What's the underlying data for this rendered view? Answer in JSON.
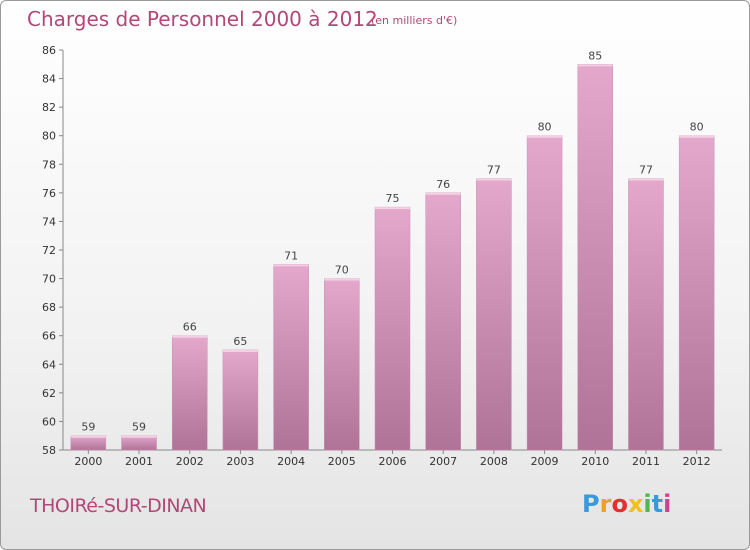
{
  "title": "Charges de Personnel 2000 à 2012",
  "unit_note": "(en milliers d'€)",
  "commune": "THOIRé-SUR-DINAN",
  "logo": {
    "letters": [
      "P",
      "r",
      "o",
      "x",
      "i",
      "t",
      "i"
    ],
    "colors": [
      "#3a9ad9",
      "#f0a020",
      "#e03030",
      "#f0c020",
      "#50b848",
      "#3a9ad9",
      "#d04090"
    ]
  },
  "colors": {
    "bar_top": "#e4a8cc",
    "bar_bottom": "#b07398",
    "accent": "#b04878"
  },
  "chart_data": {
    "type": "bar",
    "title": "Charges de Personnel 2000 à 2012",
    "xlabel": "",
    "ylabel": "",
    "categories": [
      "2000",
      "2001",
      "2002",
      "2003",
      "2004",
      "2005",
      "2006",
      "2007",
      "2008",
      "2009",
      "2010",
      "2011",
      "2012"
    ],
    "values": [
      59,
      59,
      66,
      65,
      71,
      70,
      75,
      76,
      77,
      80,
      85,
      77,
      80
    ],
    "ylim": [
      58,
      86
    ],
    "yticks": [
      58,
      60,
      62,
      64,
      66,
      68,
      70,
      72,
      74,
      76,
      78,
      80,
      82,
      84,
      86
    ],
    "grid": false,
    "data_labels": true
  }
}
